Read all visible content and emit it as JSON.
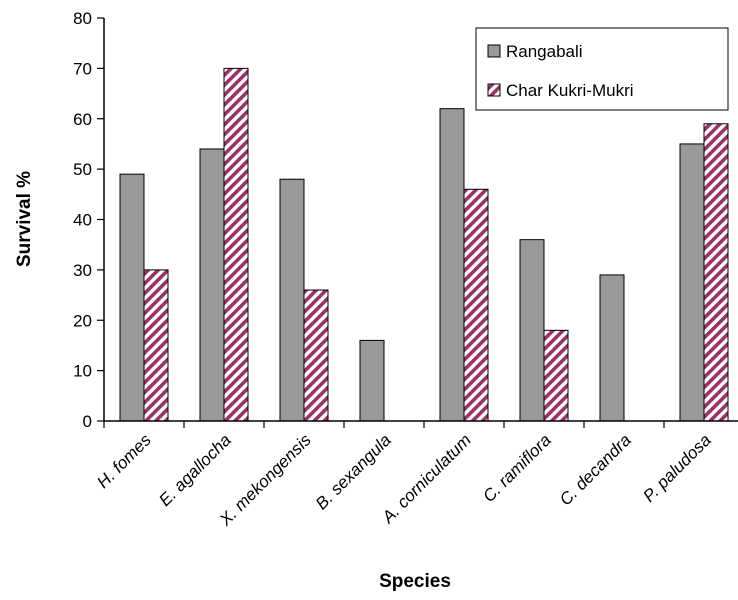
{
  "chart_data": {
    "type": "bar",
    "title": "",
    "xlabel": "Species",
    "ylabel": "Survival %",
    "ylim": [
      0,
      80
    ],
    "yticks": [
      0,
      10,
      20,
      30,
      40,
      50,
      60,
      70,
      80
    ],
    "categories": [
      "H. fomes",
      "E. agallocha",
      "X. mekongensis",
      "B. sexangula",
      "A. corniculatum",
      "C. ramiflora",
      "C. decandra",
      "P. paludosa"
    ],
    "series": [
      {
        "name": "Rangabali",
        "values": [
          49,
          54,
          48,
          16,
          62,
          36,
          29,
          55
        ],
        "color": "#999999"
      },
      {
        "name": "Char Kukri-Mukri",
        "values": [
          30,
          70,
          26,
          0,
          46,
          18,
          0,
          59
        ],
        "color": "#993366"
      }
    ],
    "grid": false,
    "legend": "top-right"
  }
}
